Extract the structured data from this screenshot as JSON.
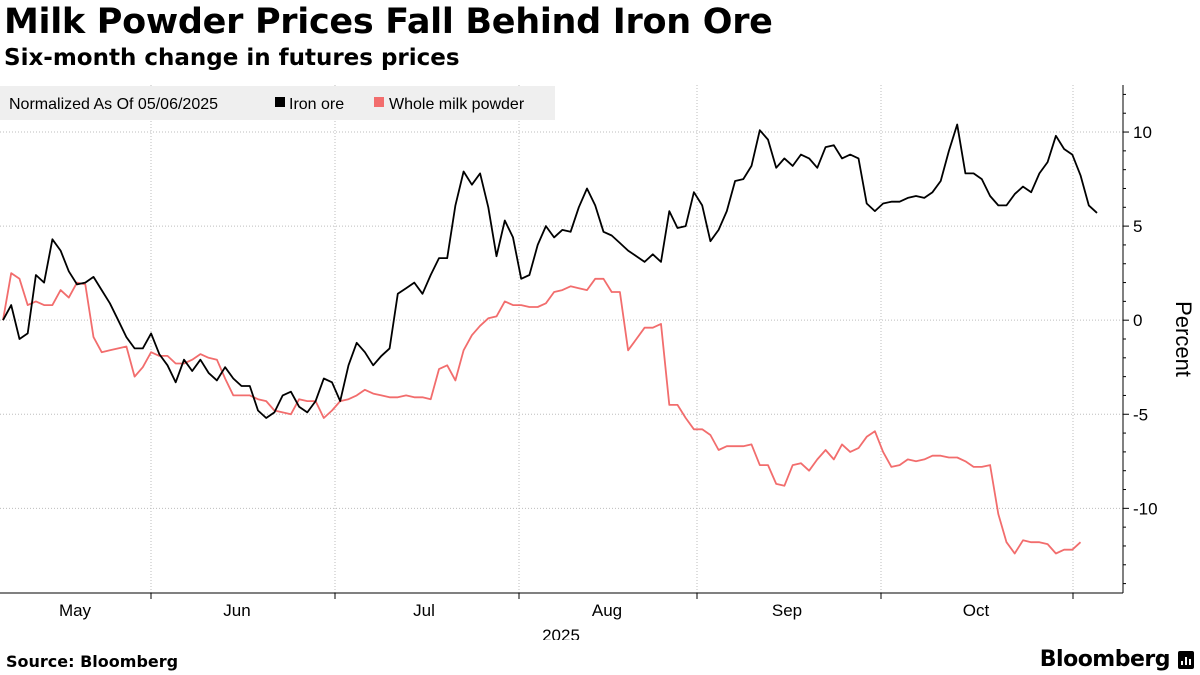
{
  "header": {
    "title": "Milk Powder Prices Fall Behind Iron Ore",
    "subtitle": "Six-month change in futures prices"
  },
  "footer": {
    "source": "Source: Bloomberg",
    "brand": "Bloomberg"
  },
  "chart_data": {
    "type": "line",
    "legend_title": "Normalized As Of 05/06/2025",
    "legend_placement": "top-left",
    "ylabel": "Percent",
    "xlabel": "2025",
    "ylim": [
      -14.5,
      12.5
    ],
    "yticks": [
      10,
      5,
      0,
      -5,
      -10
    ],
    "ytick_labels": [
      "10",
      "5",
      "0",
      "-5",
      "-10"
    ],
    "month_labels": [
      "May",
      "Jun",
      "Jul",
      "Aug",
      "Sep",
      "Oct"
    ],
    "grid": true,
    "series": [
      {
        "name": "Iron ore",
        "color": "#000000",
        "values": [
          0.0,
          0.8,
          -1.0,
          -0.7,
          2.4,
          2.0,
          4.3,
          3.7,
          2.6,
          1.9,
          2.0,
          2.3,
          1.6,
          0.9,
          0.0,
          -0.9,
          -1.5,
          -1.5,
          -0.7,
          -1.8,
          -2.4,
          -3.3,
          -2.1,
          -2.7,
          -2.1,
          -2.8,
          -3.2,
          -2.5,
          -3.1,
          -3.5,
          -3.5,
          -4.8,
          -5.2,
          -4.9,
          -4.0,
          -3.8,
          -4.6,
          -4.9,
          -4.3,
          -3.1,
          -3.3,
          -4.3,
          -2.4,
          -1.2,
          -1.7,
          -2.4,
          -1.9,
          -1.5,
          1.4,
          1.7,
          2.0,
          1.4,
          2.4,
          3.3,
          3.3,
          6.1,
          7.9,
          7.2,
          7.8,
          6.0,
          3.4,
          5.3,
          4.4,
          2.2,
          2.4,
          4.0,
          5.0,
          4.4,
          4.8,
          4.7,
          6.0,
          7.0,
          6.1,
          4.7,
          4.5,
          4.1,
          3.7,
          3.4,
          3.1,
          3.5,
          3.1,
          5.8,
          4.9,
          5.0,
          6.8,
          6.1,
          4.2,
          4.8,
          5.8,
          7.4,
          7.5,
          8.2,
          10.1,
          9.6,
          8.1,
          8.6,
          8.2,
          8.8,
          8.6,
          8.1,
          9.2,
          9.3,
          8.6,
          8.8,
          8.6,
          6.2,
          5.8,
          6.2,
          6.3,
          6.3,
          6.5,
          6.6,
          6.5,
          6.8,
          7.4,
          9.0,
          10.4,
          7.8,
          7.8,
          7.5,
          6.6,
          6.1,
          6.1,
          6.7,
          7.1,
          6.8,
          7.8,
          8.4,
          9.8,
          9.1,
          8.8,
          7.7,
          6.1,
          5.7
        ]
      },
      {
        "name": "Whole milk powder",
        "color": "#f26d6d",
        "values": [
          0.0,
          2.5,
          2.2,
          0.8,
          1.0,
          0.8,
          0.8,
          1.6,
          1.2,
          2.0,
          1.9,
          -0.9,
          -1.7,
          -1.6,
          -1.5,
          -1.4,
          -3.0,
          -2.5,
          -1.7,
          -1.9,
          -1.9,
          -2.3,
          -2.3,
          -2.1,
          -1.8,
          -2.0,
          -2.1,
          -3.1,
          -4.0,
          -4.0,
          -4.0,
          -4.2,
          -4.3,
          -4.8,
          -4.9,
          -5.0,
          -4.2,
          -4.3,
          -4.3,
          -5.2,
          -4.8,
          -4.3,
          -4.2,
          -4.0,
          -3.7,
          -3.9,
          -4.0,
          -4.1,
          -4.1,
          -4.0,
          -4.1,
          -4.1,
          -4.2,
          -2.6,
          -2.4,
          -3.2,
          -1.6,
          -0.8,
          -0.3,
          0.1,
          0.2,
          1.0,
          0.8,
          0.8,
          0.7,
          0.7,
          0.9,
          1.5,
          1.6,
          1.8,
          1.7,
          1.6,
          2.2,
          2.2,
          1.5,
          1.5,
          -1.6,
          -1.0,
          -0.4,
          -0.4,
          -0.2,
          -4.5,
          -4.5,
          -5.2,
          -5.8,
          -5.8,
          -6.1,
          -6.9,
          -6.7,
          -6.7,
          -6.7,
          -6.6,
          -7.7,
          -7.7,
          -8.7,
          -8.8,
          -7.7,
          -7.6,
          -8.0,
          -7.4,
          -6.9,
          -7.4,
          -6.6,
          -7.0,
          -6.8,
          -6.2,
          -5.9,
          -7.0,
          -7.8,
          -7.7,
          -7.4,
          -7.5,
          -7.4,
          -7.2,
          -7.2,
          -7.3,
          -7.3,
          -7.5,
          -7.8,
          -7.8,
          -7.7,
          -10.3,
          -11.8,
          -12.4,
          -11.7,
          -11.8,
          -11.8,
          -11.9,
          -12.4,
          -12.2,
          -12.2,
          -11.8
        ]
      }
    ]
  }
}
